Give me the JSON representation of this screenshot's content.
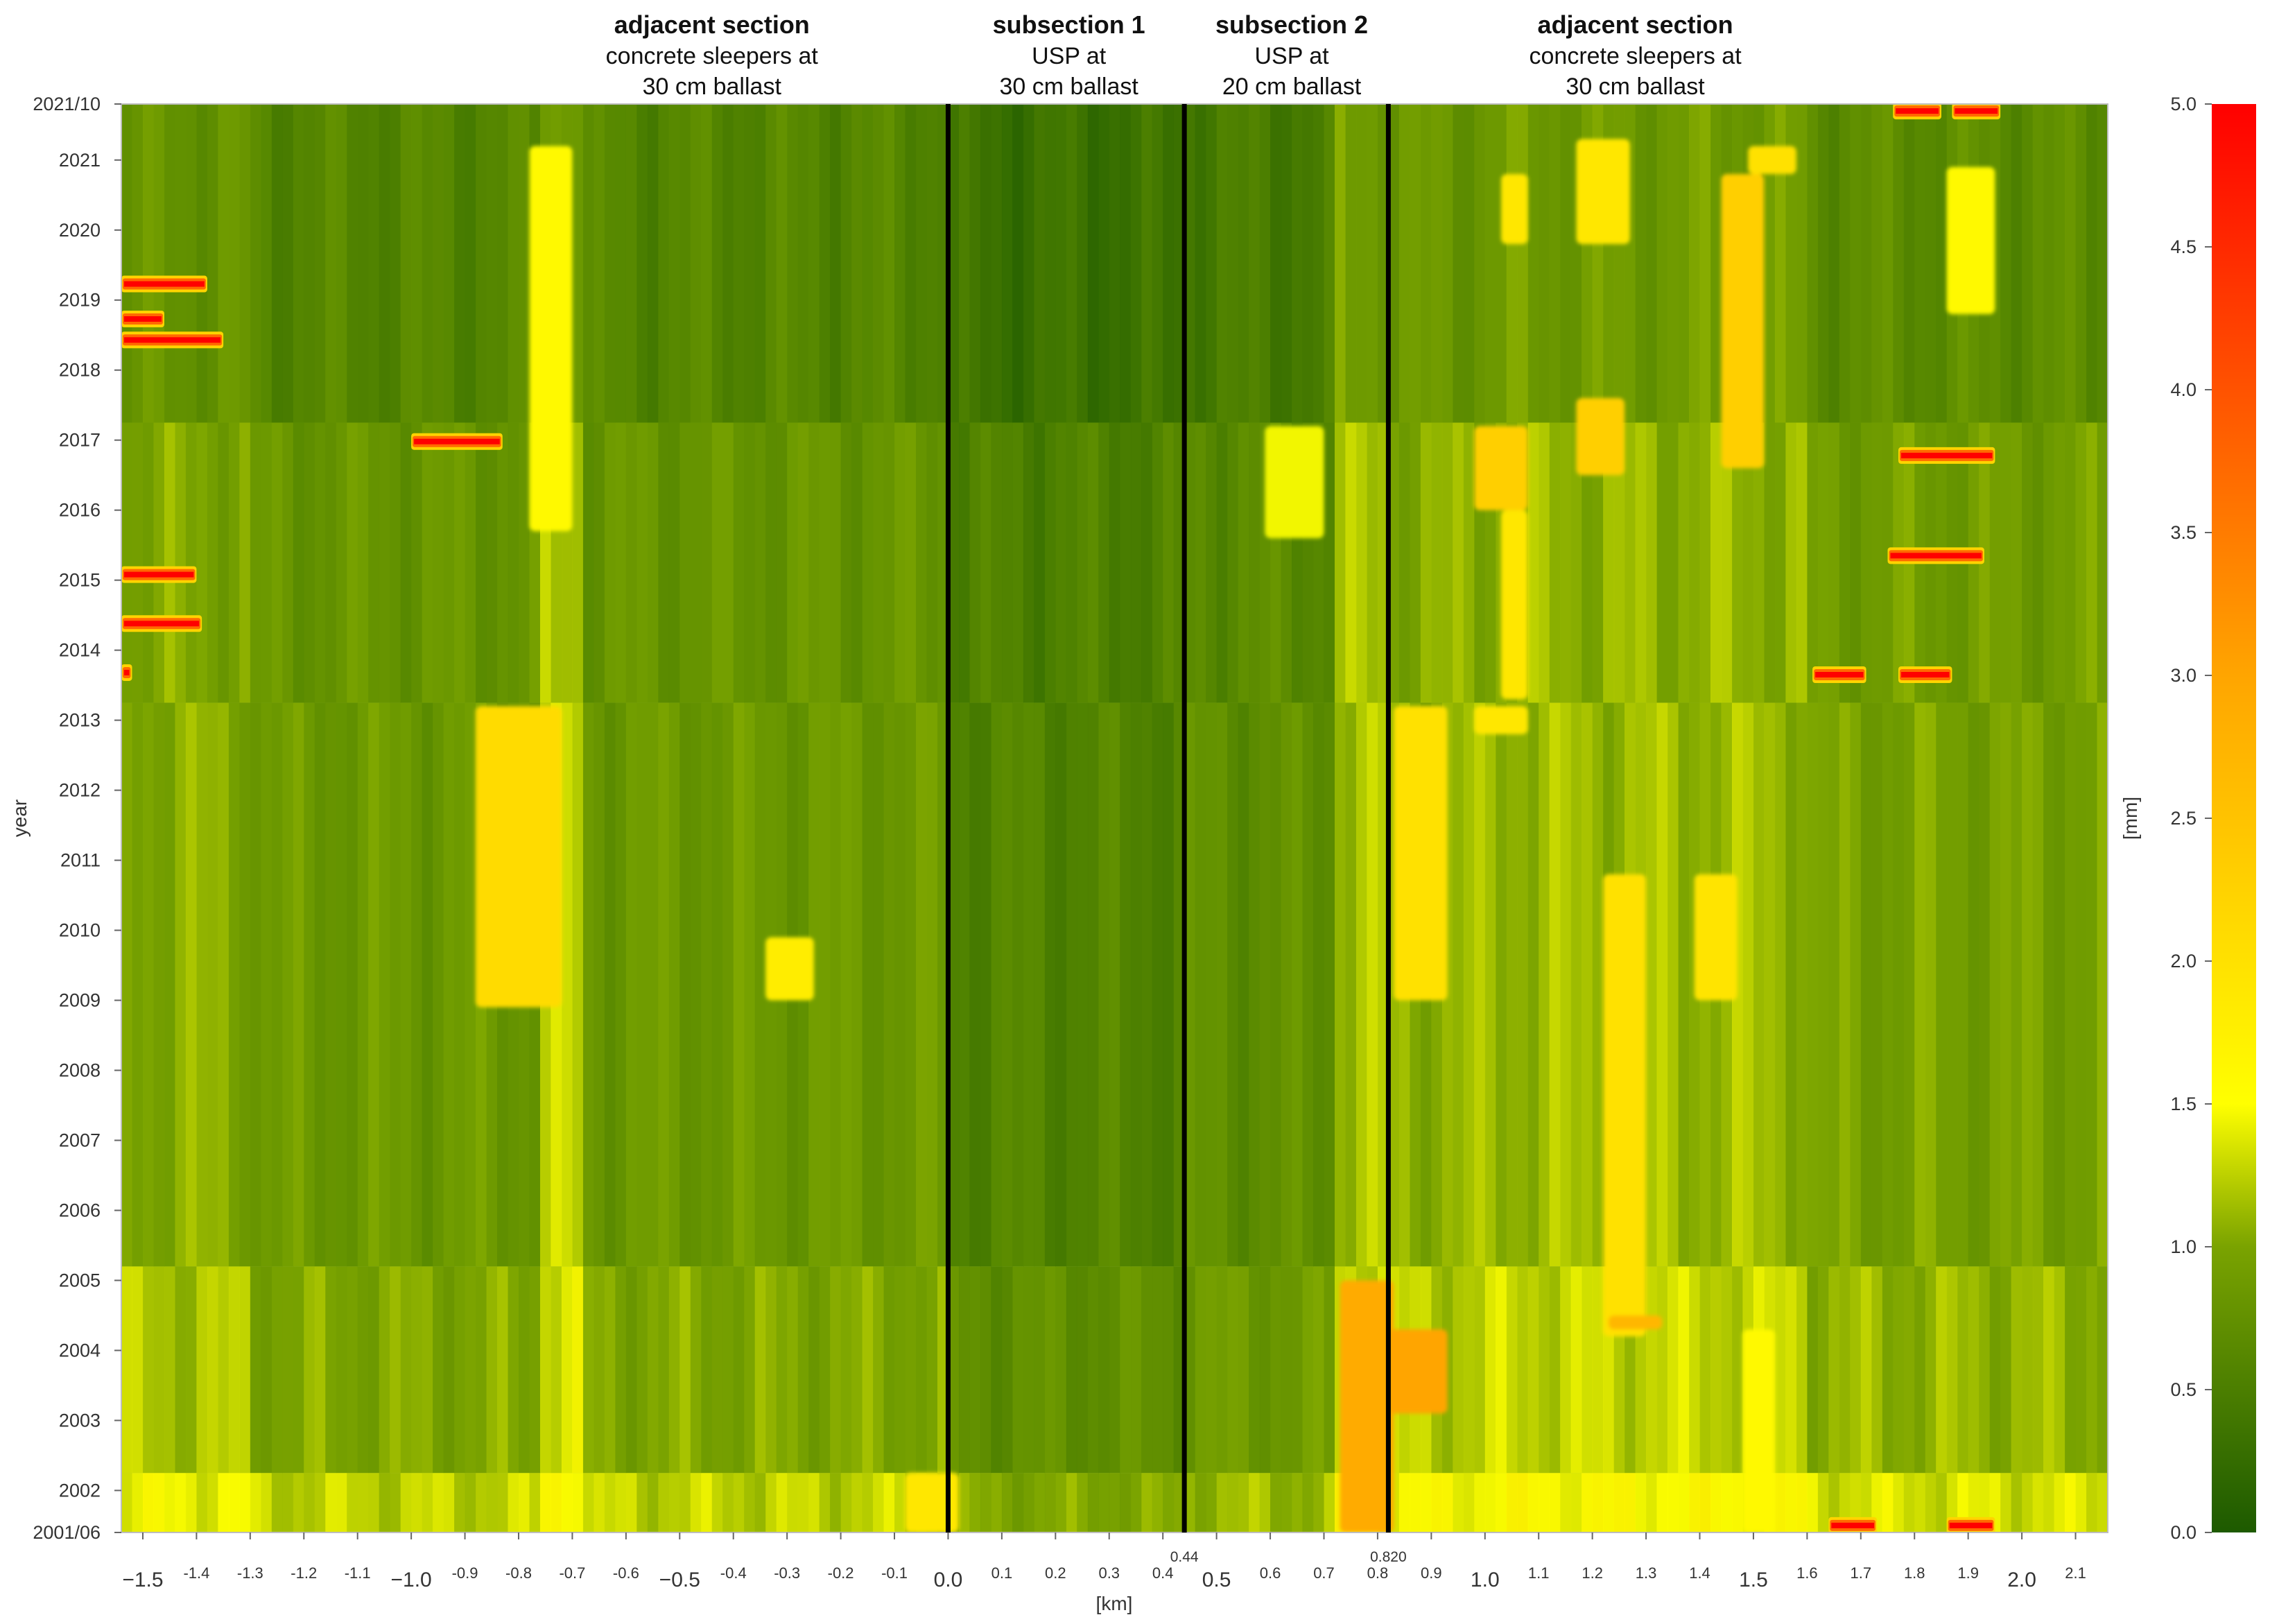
{
  "chart_data": {
    "type": "heatmap",
    "title": "",
    "xlabel": "[km]",
    "ylabel": "year",
    "colorbar_label": "[mm]",
    "xlim": [
      -1.54,
      2.16
    ],
    "ylim_years": [
      2001.4,
      2021.8
    ],
    "x_ticks": [
      {
        "v": -1.5,
        "label": "−1.5",
        "big": true
      },
      {
        "v": -1.4,
        "label": "-1.4"
      },
      {
        "v": -1.3,
        "label": "-1.3"
      },
      {
        "v": -1.2,
        "label": "-1.2"
      },
      {
        "v": -1.1,
        "label": "-1.1"
      },
      {
        "v": -1.0,
        "label": "−1.0",
        "big": true
      },
      {
        "v": -0.9,
        "label": "-0.9"
      },
      {
        "v": -0.8,
        "label": "-0.8"
      },
      {
        "v": -0.7,
        "label": "-0.7"
      },
      {
        "v": -0.6,
        "label": "-0.6"
      },
      {
        "v": -0.5,
        "label": "−0.5",
        "big": true
      },
      {
        "v": -0.4,
        "label": "-0.4"
      },
      {
        "v": -0.3,
        "label": "-0.3"
      },
      {
        "v": -0.2,
        "label": "-0.2"
      },
      {
        "v": -0.1,
        "label": "-0.1"
      },
      {
        "v": 0.0,
        "label": "0.0",
        "big": true
      },
      {
        "v": 0.1,
        "label": "0.1"
      },
      {
        "v": 0.2,
        "label": "0.2"
      },
      {
        "v": 0.3,
        "label": "0.3"
      },
      {
        "v": 0.4,
        "label": "0.4"
      },
      {
        "v": 0.5,
        "label": "0.5",
        "big": true
      },
      {
        "v": 0.6,
        "label": "0.6"
      },
      {
        "v": 0.7,
        "label": "0.7"
      },
      {
        "v": 0.8,
        "label": "0.8"
      },
      {
        "v": 0.9,
        "label": "0.9"
      },
      {
        "v": 1.0,
        "label": "1.0",
        "big": true
      },
      {
        "v": 1.1,
        "label": "1.1"
      },
      {
        "v": 1.2,
        "label": "1.2"
      },
      {
        "v": 1.3,
        "label": "1.3"
      },
      {
        "v": 1.4,
        "label": "1.4"
      },
      {
        "v": 1.5,
        "label": "1.5",
        "big": true
      },
      {
        "v": 1.6,
        "label": "1.6"
      },
      {
        "v": 1.7,
        "label": "1.7"
      },
      {
        "v": 1.8,
        "label": "1.8"
      },
      {
        "v": 1.9,
        "label": "1.9"
      },
      {
        "v": 2.0,
        "label": "2.0",
        "big": true
      },
      {
        "v": 2.1,
        "label": "2.1"
      }
    ],
    "y_ticks": [
      {
        "v": 2021.8,
        "label": "2021/10"
      },
      {
        "v": 2021.0,
        "label": "2021"
      },
      {
        "v": 2020.0,
        "label": "2020"
      },
      {
        "v": 2019.0,
        "label": "2019"
      },
      {
        "v": 2018.0,
        "label": "2018"
      },
      {
        "v": 2017.0,
        "label": "2017"
      },
      {
        "v": 2016.0,
        "label": "2016"
      },
      {
        "v": 2015.0,
        "label": "2015"
      },
      {
        "v": 2014.0,
        "label": "2014"
      },
      {
        "v": 2013.0,
        "label": "2013"
      },
      {
        "v": 2012.0,
        "label": "2012"
      },
      {
        "v": 2011.0,
        "label": "2011"
      },
      {
        "v": 2010.0,
        "label": "2010"
      },
      {
        "v": 2009.0,
        "label": "2009"
      },
      {
        "v": 2008.0,
        "label": "2008"
      },
      {
        "v": 2007.0,
        "label": "2007"
      },
      {
        "v": 2006.0,
        "label": "2006"
      },
      {
        "v": 2005.0,
        "label": "2005"
      },
      {
        "v": 2004.0,
        "label": "2004"
      },
      {
        "v": 2003.0,
        "label": "2003"
      },
      {
        "v": 2002.0,
        "label": "2002"
      },
      {
        "v": 2001.4,
        "label": "2001/06"
      }
    ],
    "colorbar": {
      "min": 0.0,
      "max": 5.0,
      "ticks": [
        "0.0",
        "0.5",
        "1.0",
        "1.5",
        "2.0",
        "2.5",
        "3.0",
        "3.5",
        "4.0",
        "4.5",
        "5.0"
      ],
      "colors": [
        {
          "v": 0.0,
          "c": "#1d5a00"
        },
        {
          "v": 1.0,
          "c": "#7aa300"
        },
        {
          "v": 1.5,
          "c": "#ffff00"
        },
        {
          "v": 3.0,
          "c": "#ffa500"
        },
        {
          "v": 5.0,
          "c": "#ff0000"
        }
      ]
    },
    "section_boundaries": [
      {
        "x": 0.0,
        "label": ""
      },
      {
        "x": 0.44,
        "label": "0.44"
      },
      {
        "x": 0.82,
        "label": "0.820"
      }
    ],
    "sections": [
      {
        "title": "adjacent section",
        "lines": [
          "concrete sleepers at",
          "30 cm ballast"
        ],
        "x_center": -0.44
      },
      {
        "title": "subsection 1",
        "lines": [
          "USP at",
          "30 cm ballast"
        ],
        "x_center": 0.225
      },
      {
        "title": "subsection 2",
        "lines": [
          "USP at",
          "20 cm ballast"
        ],
        "x_center": 0.64
      },
      {
        "title": "adjacent section",
        "lines": [
          "concrete sleepers at",
          "30 cm ballast"
        ],
        "x_center": 1.28
      }
    ],
    "background_bands": [
      {
        "y0": 2001.4,
        "y1": 2002.25,
        "value": 1.25
      },
      {
        "y0": 2002.25,
        "y1": 2005.2,
        "value": 1.0
      },
      {
        "y0": 2005.2,
        "y1": 2013.25,
        "value": 0.85
      },
      {
        "y0": 2013.25,
        "y1": 2017.25,
        "value": 0.8
      },
      {
        "y0": 2017.25,
        "y1": 2021.8,
        "value": 0.6
      }
    ],
    "column_offsets": [
      {
        "x0": -1.54,
        "x1": -1.3,
        "dv": 0.2
      },
      {
        "x0": -0.75,
        "x1": -0.68,
        "dv": 0.4
      },
      {
        "x0": 0.0,
        "x1": 0.44,
        "dv": -0.3
      },
      {
        "x0": 0.44,
        "x1": 0.72,
        "dv": -0.15
      },
      {
        "x0": 0.72,
        "x1": 0.82,
        "dv": 0.35
      },
      {
        "x0": 0.82,
        "x1": 1.0,
        "dv": 0.25
      },
      {
        "x0": 1.0,
        "x1": 1.6,
        "dv": 0.3
      },
      {
        "x0": 1.6,
        "x1": 2.16,
        "dv": 0.1
      }
    ],
    "patches": [
      {
        "x0": -0.78,
        "x1": -0.7,
        "y0": 2015.7,
        "y1": 2021.2,
        "value": 1.6
      },
      {
        "x0": -0.88,
        "x1": -0.72,
        "y0": 2008.9,
        "y1": 2013.2,
        "value": 2.1
      },
      {
        "x0": -0.34,
        "x1": -0.25,
        "y0": 2009.0,
        "y1": 2009.9,
        "value": 1.8
      },
      {
        "x0": -0.08,
        "x1": 0.02,
        "y0": 2001.4,
        "y1": 2002.25,
        "value": 1.9
      },
      {
        "x0": 0.59,
        "x1": 0.7,
        "y0": 2015.6,
        "y1": 2017.2,
        "value": 1.45
      },
      {
        "x0": 0.73,
        "x1": 0.83,
        "y0": 2001.4,
        "y1": 2005.0,
        "value": 2.9
      },
      {
        "x0": 0.82,
        "x1": 0.93,
        "y0": 2003.1,
        "y1": 2004.3,
        "value": 3.0
      },
      {
        "x0": 0.83,
        "x1": 0.93,
        "y0": 2009.0,
        "y1": 2013.2,
        "value": 2.0
      },
      {
        "x0": 0.98,
        "x1": 1.08,
        "y0": 2012.8,
        "y1": 2013.2,
        "value": 1.9
      },
      {
        "x0": 0.98,
        "x1": 1.08,
        "y0": 2016.0,
        "y1": 2017.2,
        "value": 2.3
      },
      {
        "x0": 1.03,
        "x1": 1.08,
        "y0": 2013.3,
        "y1": 2016.0,
        "value": 1.9
      },
      {
        "x0": 1.03,
        "x1": 1.08,
        "y0": 2019.8,
        "y1": 2020.8,
        "value": 1.9
      },
      {
        "x0": 1.17,
        "x1": 1.26,
        "y0": 2016.5,
        "y1": 2017.6,
        "value": 2.3
      },
      {
        "x0": 1.17,
        "x1": 1.27,
        "y0": 2019.8,
        "y1": 2021.3,
        "value": 1.9
      },
      {
        "x0": 1.22,
        "x1": 1.3,
        "y0": 2004.2,
        "y1": 2010.8,
        "value": 2.0
      },
      {
        "x0": 1.23,
        "x1": 1.33,
        "y0": 2004.3,
        "y1": 2004.5,
        "value": 2.7
      },
      {
        "x0": 1.39,
        "x1": 1.47,
        "y0": 2009.0,
        "y1": 2010.8,
        "value": 1.95
      },
      {
        "x0": 1.44,
        "x1": 1.52,
        "y0": 2016.6,
        "y1": 2020.8,
        "value": 2.3
      },
      {
        "x0": 1.49,
        "x1": 1.58,
        "y0": 2020.8,
        "y1": 2021.2,
        "value": 2.0
      },
      {
        "x0": 1.48,
        "x1": 1.54,
        "y0": 2001.4,
        "y1": 2004.3,
        "value": 1.6
      },
      {
        "x0": 1.86,
        "x1": 1.95,
        "y0": 2018.8,
        "y1": 2020.9,
        "value": 1.6
      }
    ],
    "spikes": [
      {
        "x0": -1.54,
        "x1": -1.38,
        "y": 2019.23,
        "value": 5.0
      },
      {
        "x0": -1.54,
        "x1": -1.46,
        "y": 2018.73,
        "value": 5.0
      },
      {
        "x0": -1.54,
        "x1": -1.35,
        "y": 2018.43,
        "value": 5.0
      },
      {
        "x0": -1.0,
        "x1": -0.83,
        "y": 2016.98,
        "value": 5.0
      },
      {
        "x0": -1.54,
        "x1": -1.4,
        "y": 2015.08,
        "value": 5.0
      },
      {
        "x0": -1.54,
        "x1": -1.39,
        "y": 2014.38,
        "value": 5.0
      },
      {
        "x0": -1.54,
        "x1": -1.52,
        "y": 2013.68,
        "value": 5.0
      },
      {
        "x0": 1.76,
        "x1": 1.85,
        "y": 2021.7,
        "value": 5.0
      },
      {
        "x0": 1.87,
        "x1": 1.96,
        "y": 2021.7,
        "value": 5.0
      },
      {
        "x0": 1.77,
        "x1": 1.95,
        "y": 2016.78,
        "value": 5.0
      },
      {
        "x0": 1.75,
        "x1": 1.93,
        "y": 2015.35,
        "value": 5.0
      },
      {
        "x0": 1.61,
        "x1": 1.71,
        "y": 2013.65,
        "value": 5.0
      },
      {
        "x0": 1.77,
        "x1": 1.87,
        "y": 2013.65,
        "value": 5.0
      },
      {
        "x0": 1.64,
        "x1": 1.73,
        "y": 2001.5,
        "value": 5.0
      },
      {
        "x0": 1.86,
        "x1": 1.95,
        "y": 2001.5,
        "value": 5.0
      }
    ]
  }
}
